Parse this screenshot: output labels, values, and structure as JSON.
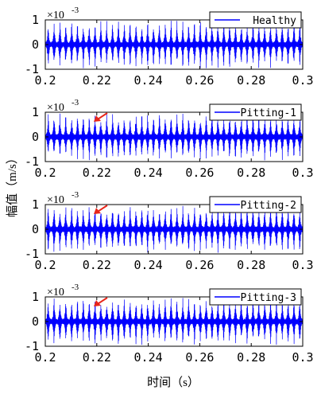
{
  "figure": {
    "ylabel": "幅值（m/s）",
    "xlabel": "时间（s）"
  },
  "chart_data": [
    {
      "type": "line",
      "legend": "Healthy",
      "multiplier": "×10",
      "exponent": "-3",
      "xlim": [
        0.2,
        0.3
      ],
      "ylim": [
        -1,
        1
      ],
      "xticks": [
        "0.2",
        "0.22",
        "0.24",
        "0.26",
        "0.28",
        "0.3"
      ],
      "yticks": [
        "1",
        "0",
        "-1"
      ],
      "series_color": "#0000ff",
      "annotation_arrow": false
    },
    {
      "type": "line",
      "legend": "Pitting-1",
      "multiplier": "×10",
      "exponent": "-3",
      "xlim": [
        0.2,
        0.3
      ],
      "ylim": [
        -1,
        1
      ],
      "xticks": [
        "0.2",
        "0.22",
        "0.24",
        "0.26",
        "0.28",
        "0.3"
      ],
      "yticks": [
        "1",
        "0",
        "-1"
      ],
      "series_color": "#0000ff",
      "annotation_arrow": true
    },
    {
      "type": "line",
      "legend": "Pitting-2",
      "multiplier": "×10",
      "exponent": "-3",
      "xlim": [
        0.2,
        0.3
      ],
      "ylim": [
        -1,
        1
      ],
      "xticks": [
        "0.2",
        "0.22",
        "0.24",
        "0.26",
        "0.28",
        "0.3"
      ],
      "yticks": [
        "1",
        "0",
        "-1"
      ],
      "series_color": "#0000ff",
      "annotation_arrow": true
    },
    {
      "type": "line",
      "legend": "Pitting-3",
      "multiplier": "×10",
      "exponent": "-3",
      "xlim": [
        0.2,
        0.3
      ],
      "ylim": [
        -1,
        1
      ],
      "xticks": [
        "0.2",
        "0.22",
        "0.24",
        "0.26",
        "0.28",
        "0.3"
      ],
      "yticks": [
        "1",
        "0",
        "-1"
      ],
      "series_color": "#0000ff",
      "annotation_arrow": true
    }
  ],
  "colors": {
    "arrow": "#e8261a",
    "axes": "#000000"
  }
}
